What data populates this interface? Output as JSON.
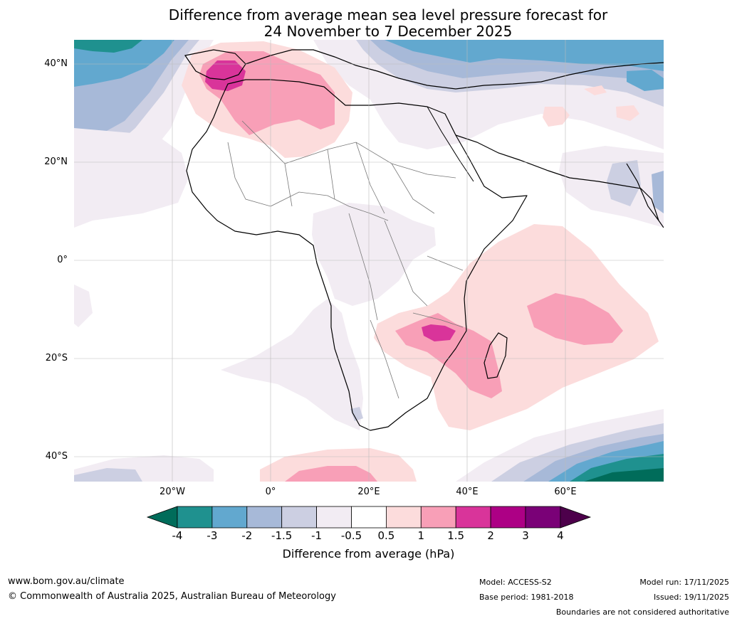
{
  "title": {
    "line1": "Difference from average mean sea level pressure forecast for",
    "line2": "24 November to 7 December 2025"
  },
  "axes": {
    "lat_labels": [
      "40°N",
      "20°N",
      "0°",
      "20°S",
      "40°S"
    ],
    "lon_labels": [
      "20°W",
      "0°",
      "20°E",
      "40°E",
      "60°E"
    ]
  },
  "colorbar": {
    "label": "Difference from average (hPa)",
    "ticks": [
      "-4",
      "-3",
      "-2",
      "-1.5",
      "-1",
      "-0.5",
      "0.5",
      "1",
      "1.5",
      "2",
      "3",
      "4"
    ],
    "colors": [
      "#006c5a",
      "#1f918f",
      "#62a8cf",
      "#a7b9d8",
      "#cccfe2",
      "#f2ecf3",
      "#ffffff",
      "#fcdcdc",
      "#f89fb7",
      "#d9349a",
      "#ad0085",
      "#7a0177",
      "#4d004b"
    ]
  },
  "footer": {
    "website": "www.bom.gov.au/climate",
    "copyright": "© Commonwealth of Australia 2025, Australian Bureau of Meteorology",
    "model": "Model: ACCESS-S2",
    "base_period": "Base period: 1981-2018",
    "model_run": "Model run: 17/11/2025",
    "issued": "Issued: 19/11/2025",
    "disclaimer": "Boundaries are not considered authoritative"
  }
}
